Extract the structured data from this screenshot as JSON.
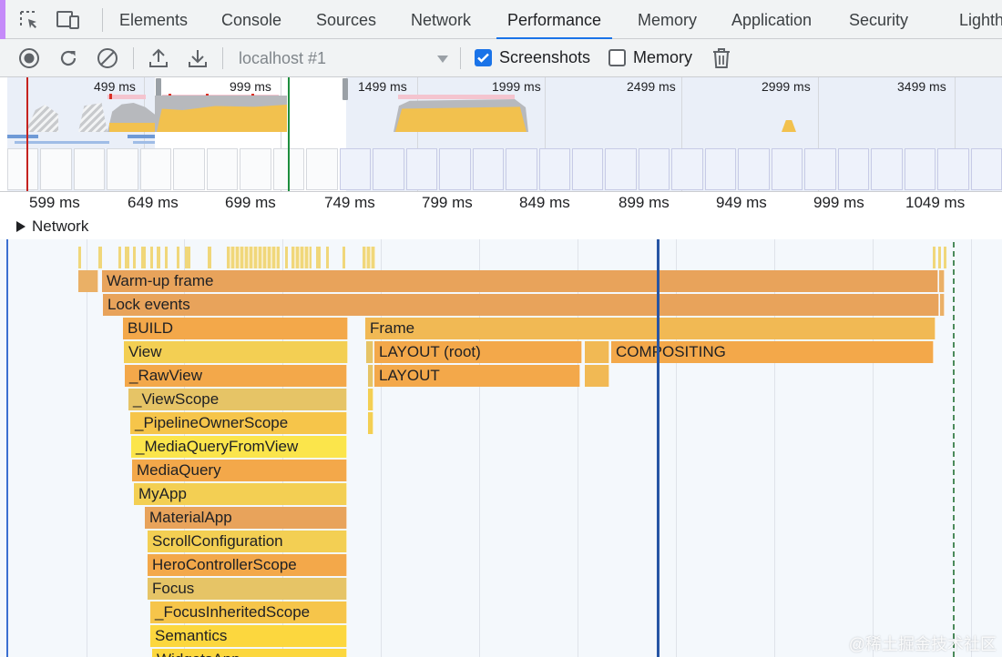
{
  "tabs": {
    "items": [
      {
        "label": "Elements"
      },
      {
        "label": "Console"
      },
      {
        "label": "Sources"
      },
      {
        "label": "Network"
      },
      {
        "label": "Performance"
      },
      {
        "label": "Memory"
      },
      {
        "label": "Application"
      },
      {
        "label": "Security"
      },
      {
        "label": "Lighth"
      }
    ],
    "active": "Performance"
  },
  "toolbar": {
    "target": "localhost #1",
    "screenshots_label": "Screenshots",
    "screenshots_checked": true,
    "memory_label": "Memory",
    "memory_checked": false
  },
  "overview": {
    "ticks": [
      "499 ms",
      "999 ms",
      "1499 ms",
      "1999 ms",
      "2499 ms",
      "2999 ms",
      "3499 ms"
    ]
  },
  "ruler": {
    "ticks": [
      "599 ms",
      "649 ms",
      "699 ms",
      "749 ms",
      "799 ms",
      "849 ms",
      "899 ms",
      "949 ms",
      "999 ms",
      "1049 ms"
    ]
  },
  "network": {
    "label": "Network"
  },
  "flame": {
    "warmup": "Warm-up frame",
    "lock": "Lock events",
    "build": "BUILD",
    "frame": "Frame",
    "layout_root": "LAYOUT (root)",
    "compositing": "COMPOSITING",
    "layout": "LAYOUT",
    "stack": [
      "View",
      "_RawView",
      "_ViewScope",
      "_PipelineOwnerScope",
      "_MediaQueryFromView",
      "MediaQuery",
      "MyApp",
      "MaterialApp",
      "ScrollConfiguration",
      "HeroControllerScope",
      "Focus",
      "_FocusInheritedScope",
      "Semantics",
      "WidgetsApp"
    ]
  },
  "watermark": "@稀土掘金技术社区",
  "colors": {
    "accent": "#1a73e8",
    "cursor": "#2755a4"
  }
}
